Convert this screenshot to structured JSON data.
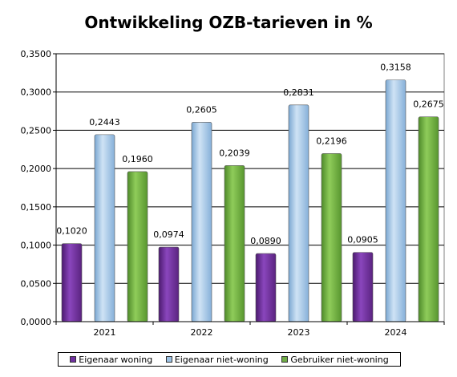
{
  "chart_data": {
    "type": "bar",
    "title": "Ontwikkeling OZB-tarieven in %",
    "xlabel": "",
    "ylabel": "",
    "categories": [
      "2021",
      "2022",
      "2023",
      "2024"
    ],
    "ylim": [
      0,
      0.35
    ],
    "y_ticks": [
      "0,0000",
      "0,0500",
      "0,1000",
      "0,1500",
      "0,2000",
      "0,2500",
      "0,3000",
      "0,3500"
    ],
    "grid": true,
    "legend_position": "bottom",
    "series": [
      {
        "name": "Eigenaar woning",
        "color": "#7030A0",
        "values": [
          0.102,
          0.0974,
          0.089,
          0.0905
        ],
        "labels": [
          "0,1020",
          "0,0974",
          "0,0890",
          "0,0905"
        ]
      },
      {
        "name": "Eigenaar niet-woning",
        "color": "#9DC3E6",
        "values": [
          0.2443,
          0.2605,
          0.2831,
          0.3158
        ],
        "labels": [
          "0,2443",
          "0,2605",
          "0,2831",
          "0,3158"
        ]
      },
      {
        "name": "Gebruiker niet-woning",
        "color": "#70AD47",
        "values": [
          0.196,
          0.2039,
          0.2196,
          0.2675
        ],
        "labels": [
          "0,1960",
          "0,2039",
          "0,2196",
          "0,2675"
        ]
      }
    ]
  }
}
